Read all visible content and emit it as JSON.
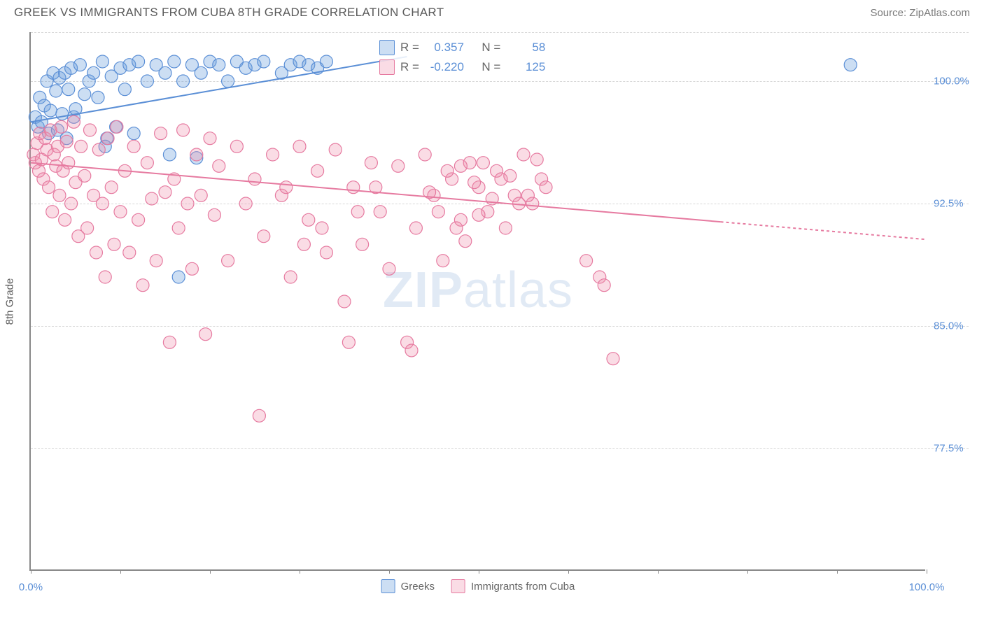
{
  "header": {
    "title": "GREEK VS IMMIGRANTS FROM CUBA 8TH GRADE CORRELATION CHART",
    "source": "Source: ZipAtlas.com"
  },
  "chart": {
    "type": "scatter",
    "y_axis_label": "8th Grade",
    "watermark_bold": "ZIP",
    "watermark_light": "atlas",
    "background_color": "#ffffff",
    "grid_color": "#d8d8d8",
    "axis_color": "#888888",
    "tick_label_color": "#5b8fd6",
    "xlim": [
      0,
      100
    ],
    "ylim": [
      70,
      103
    ],
    "x_ticks_major": [
      0,
      10,
      20,
      30,
      40,
      50,
      60,
      70,
      80,
      90,
      100
    ],
    "x_tick_labels": [
      {
        "x": 0,
        "label": "0.0%"
      },
      {
        "x": 100,
        "label": "100.0%"
      }
    ],
    "y_gridlines": [
      77.5,
      85.0,
      92.5,
      100.0,
      103.0
    ],
    "y_tick_labels": [
      {
        "y": 77.5,
        "label": "77.5%"
      },
      {
        "y": 85.0,
        "label": "85.0%"
      },
      {
        "y": 92.5,
        "label": "92.5%"
      },
      {
        "y": 100.0,
        "label": "100.0%"
      }
    ],
    "marker_radius": 9,
    "marker_stroke_width": 1.2,
    "line_width": 2,
    "series": [
      {
        "name": "Greeks",
        "fill_color": "rgba(110,160,220,0.35)",
        "stroke_color": "#5b8fd6",
        "swatch_fill": "rgba(110,160,220,0.35)",
        "swatch_border": "#5b8fd6",
        "R_label": "R =",
        "R_value": "0.357",
        "N_label": "N =",
        "N_value": "58",
        "trend": {
          "x1": 0,
          "y1": 97.5,
          "x2": 42,
          "y2": 101.5,
          "dash_from_x": null
        },
        "points": [
          [
            0.5,
            97.8
          ],
          [
            0.8,
            97.2
          ],
          [
            1.0,
            99.0
          ],
          [
            1.2,
            97.5
          ],
          [
            1.5,
            98.5
          ],
          [
            1.8,
            100.0
          ],
          [
            2.0,
            96.8
          ],
          [
            2.2,
            98.2
          ],
          [
            2.5,
            100.5
          ],
          [
            2.8,
            99.4
          ],
          [
            3.0,
            97.0
          ],
          [
            3.2,
            100.2
          ],
          [
            3.5,
            98.0
          ],
          [
            3.8,
            100.5
          ],
          [
            4.0,
            96.5
          ],
          [
            4.2,
            99.5
          ],
          [
            4.5,
            100.8
          ],
          [
            4.8,
            97.8
          ],
          [
            5.0,
            98.3
          ],
          [
            5.5,
            101.0
          ],
          [
            6.0,
            99.2
          ],
          [
            6.5,
            100.0
          ],
          [
            7.0,
            100.5
          ],
          [
            7.5,
            99.0
          ],
          [
            8.0,
            101.2
          ],
          [
            8.5,
            96.5
          ],
          [
            9.0,
            100.3
          ],
          [
            9.5,
            97.2
          ],
          [
            10.0,
            100.8
          ],
          [
            10.5,
            99.5
          ],
          [
            11.0,
            101.0
          ],
          [
            11.5,
            96.8
          ],
          [
            12.0,
            101.2
          ],
          [
            13.0,
            100.0
          ],
          [
            14.0,
            101.0
          ],
          [
            15.0,
            100.5
          ],
          [
            16.0,
            101.2
          ],
          [
            16.5,
            88.0
          ],
          [
            17.0,
            100.0
          ],
          [
            18.0,
            101.0
          ],
          [
            19.0,
            100.5
          ],
          [
            20.0,
            101.2
          ],
          [
            21.0,
            101.0
          ],
          [
            22.0,
            100.0
          ],
          [
            23.0,
            101.2
          ],
          [
            24.0,
            100.8
          ],
          [
            25.0,
            101.0
          ],
          [
            26.0,
            101.2
          ],
          [
            28.0,
            100.5
          ],
          [
            29.0,
            101.0
          ],
          [
            30.0,
            101.2
          ],
          [
            31.0,
            101.0
          ],
          [
            32.0,
            100.8
          ],
          [
            33.0,
            101.2
          ],
          [
            15.5,
            95.5
          ],
          [
            18.5,
            95.3
          ],
          [
            91.5,
            101.0
          ],
          [
            8.3,
            96.0
          ]
        ]
      },
      {
        "name": "Immigrants from Cuba",
        "fill_color": "rgba(240,140,170,0.30)",
        "stroke_color": "#e67aa0",
        "swatch_fill": "rgba(240,140,170,0.30)",
        "swatch_border": "#e67aa0",
        "R_label": "R =",
        "R_value": "-0.220",
        "N_label": "N =",
        "N_value": "125",
        "trend": {
          "x1": 0,
          "y1": 95.0,
          "x2": 100,
          "y2": 90.3,
          "dash_from_x": 77
        },
        "points": [
          [
            0.3,
            95.5
          ],
          [
            0.5,
            95.0
          ],
          [
            0.7,
            96.2
          ],
          [
            0.9,
            94.5
          ],
          [
            1.0,
            96.8
          ],
          [
            1.2,
            95.2
          ],
          [
            1.4,
            94.0
          ],
          [
            1.6,
            96.5
          ],
          [
            1.8,
            95.8
          ],
          [
            2.0,
            93.5
          ],
          [
            2.2,
            97.0
          ],
          [
            2.4,
            92.0
          ],
          [
            2.6,
            95.5
          ],
          [
            2.8,
            94.8
          ],
          [
            3.0,
            96.0
          ],
          [
            3.2,
            93.0
          ],
          [
            3.4,
            97.2
          ],
          [
            3.6,
            94.5
          ],
          [
            3.8,
            91.5
          ],
          [
            4.0,
            96.3
          ],
          [
            4.2,
            95.0
          ],
          [
            4.5,
            92.5
          ],
          [
            4.8,
            97.5
          ],
          [
            5.0,
            93.8
          ],
          [
            5.3,
            90.5
          ],
          [
            5.6,
            96.0
          ],
          [
            6.0,
            94.2
          ],
          [
            6.3,
            91.0
          ],
          [
            6.6,
            97.0
          ],
          [
            7.0,
            93.0
          ],
          [
            7.3,
            89.5
          ],
          [
            7.6,
            95.8
          ],
          [
            8.0,
            92.5
          ],
          [
            8.3,
            88.0
          ],
          [
            8.6,
            96.5
          ],
          [
            9.0,
            93.5
          ],
          [
            9.3,
            90.0
          ],
          [
            9.6,
            97.2
          ],
          [
            10.0,
            92.0
          ],
          [
            10.5,
            94.5
          ],
          [
            11.0,
            89.5
          ],
          [
            11.5,
            96.0
          ],
          [
            12.0,
            91.5
          ],
          [
            12.5,
            87.5
          ],
          [
            13.0,
            95.0
          ],
          [
            13.5,
            92.8
          ],
          [
            14.0,
            89.0
          ],
          [
            14.5,
            96.8
          ],
          [
            15.0,
            93.2
          ],
          [
            15.5,
            84.0
          ],
          [
            16.0,
            94.0
          ],
          [
            16.5,
            91.0
          ],
          [
            17.0,
            97.0
          ],
          [
            17.5,
            92.5
          ],
          [
            18.0,
            88.5
          ],
          [
            18.5,
            95.5
          ],
          [
            19.0,
            93.0
          ],
          [
            19.5,
            84.5
          ],
          [
            20.0,
            96.5
          ],
          [
            20.5,
            91.8
          ],
          [
            21.0,
            94.8
          ],
          [
            22.0,
            89.0
          ],
          [
            23.0,
            96.0
          ],
          [
            24.0,
            92.5
          ],
          [
            25.0,
            94.0
          ],
          [
            25.5,
            79.5
          ],
          [
            26.0,
            90.5
          ],
          [
            27.0,
            95.5
          ],
          [
            28.0,
            93.0
          ],
          [
            29.0,
            88.0
          ],
          [
            30.0,
            96.0
          ],
          [
            31.0,
            91.5
          ],
          [
            32.0,
            94.5
          ],
          [
            33.0,
            89.5
          ],
          [
            34.0,
            95.8
          ],
          [
            35.0,
            86.5
          ],
          [
            35.5,
            84.0
          ],
          [
            36.0,
            93.5
          ],
          [
            37.0,
            90.0
          ],
          [
            38.0,
            95.0
          ],
          [
            39.0,
            92.0
          ],
          [
            40.0,
            88.5
          ],
          [
            41.0,
            94.8
          ],
          [
            42.0,
            84.0
          ],
          [
            42.5,
            83.5
          ],
          [
            43.0,
            91.0
          ],
          [
            44.0,
            95.5
          ],
          [
            45.0,
            93.0
          ],
          [
            46.0,
            89.0
          ],
          [
            47.0,
            94.0
          ],
          [
            48.0,
            91.5
          ],
          [
            49.0,
            95.0
          ],
          [
            50.0,
            93.5
          ],
          [
            51.0,
            92.0
          ],
          [
            52.0,
            94.5
          ],
          [
            53.0,
            91.0
          ],
          [
            54.0,
            93.0
          ],
          [
            55.0,
            95.5
          ],
          [
            56.0,
            92.5
          ],
          [
            57.0,
            94.0
          ],
          [
            47.5,
            91.0
          ],
          [
            48.5,
            90.2
          ],
          [
            50.5,
            95.0
          ],
          [
            52.5,
            94.0
          ],
          [
            54.5,
            92.5
          ],
          [
            57.5,
            93.5
          ],
          [
            45.5,
            92.0
          ],
          [
            46.5,
            94.5
          ],
          [
            49.5,
            93.8
          ],
          [
            51.5,
            92.8
          ],
          [
            53.5,
            94.2
          ],
          [
            55.5,
            93.0
          ],
          [
            56.5,
            95.2
          ],
          [
            48.0,
            94.8
          ],
          [
            44.5,
            93.2
          ],
          [
            50.0,
            91.8
          ],
          [
            62.0,
            89.0
          ],
          [
            63.5,
            88.0
          ],
          [
            64.0,
            87.5
          ],
          [
            65.0,
            83.0
          ],
          [
            28.5,
            93.5
          ],
          [
            30.5,
            90.0
          ],
          [
            32.5,
            91.0
          ],
          [
            36.5,
            92.0
          ],
          [
            38.5,
            93.5
          ]
        ]
      }
    ],
    "legend": {
      "items": [
        {
          "label": "Greeks",
          "swatch_series": 0
        },
        {
          "label": "Immigrants from Cuba",
          "swatch_series": 1
        }
      ]
    }
  }
}
